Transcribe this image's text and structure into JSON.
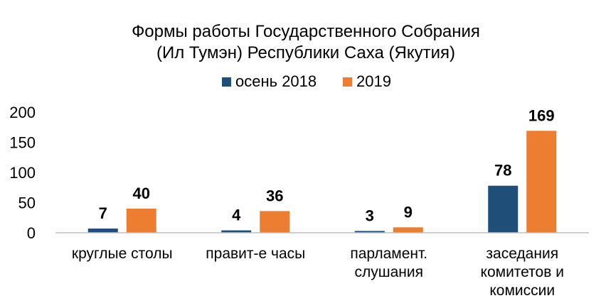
{
  "chart_data": {
    "type": "bar",
    "title_lines": [
      "Формы работы Государственного Собрания",
      "(Ил Тумэн) Республики Саха (Якутия)"
    ],
    "categories": [
      [
        "круглые  столы"
      ],
      [
        "правит-е часы"
      ],
      [
        "парламент.",
        "слушания"
      ],
      [
        "заседания",
        "комитетов и",
        "комиссии"
      ]
    ],
    "series": [
      {
        "name": "осень 2018",
        "color": "#1f4e79",
        "values": [
          7,
          4,
          3,
          78
        ]
      },
      {
        "name": "2019",
        "color": "#ed7d31",
        "values": [
          40,
          36,
          9,
          169
        ]
      }
    ],
    "ylim": [
      0,
      200
    ],
    "yticks": [
      "0",
      "50",
      "100",
      "150",
      "200"
    ],
    "grid": false,
    "legend_position": "top-center"
  }
}
